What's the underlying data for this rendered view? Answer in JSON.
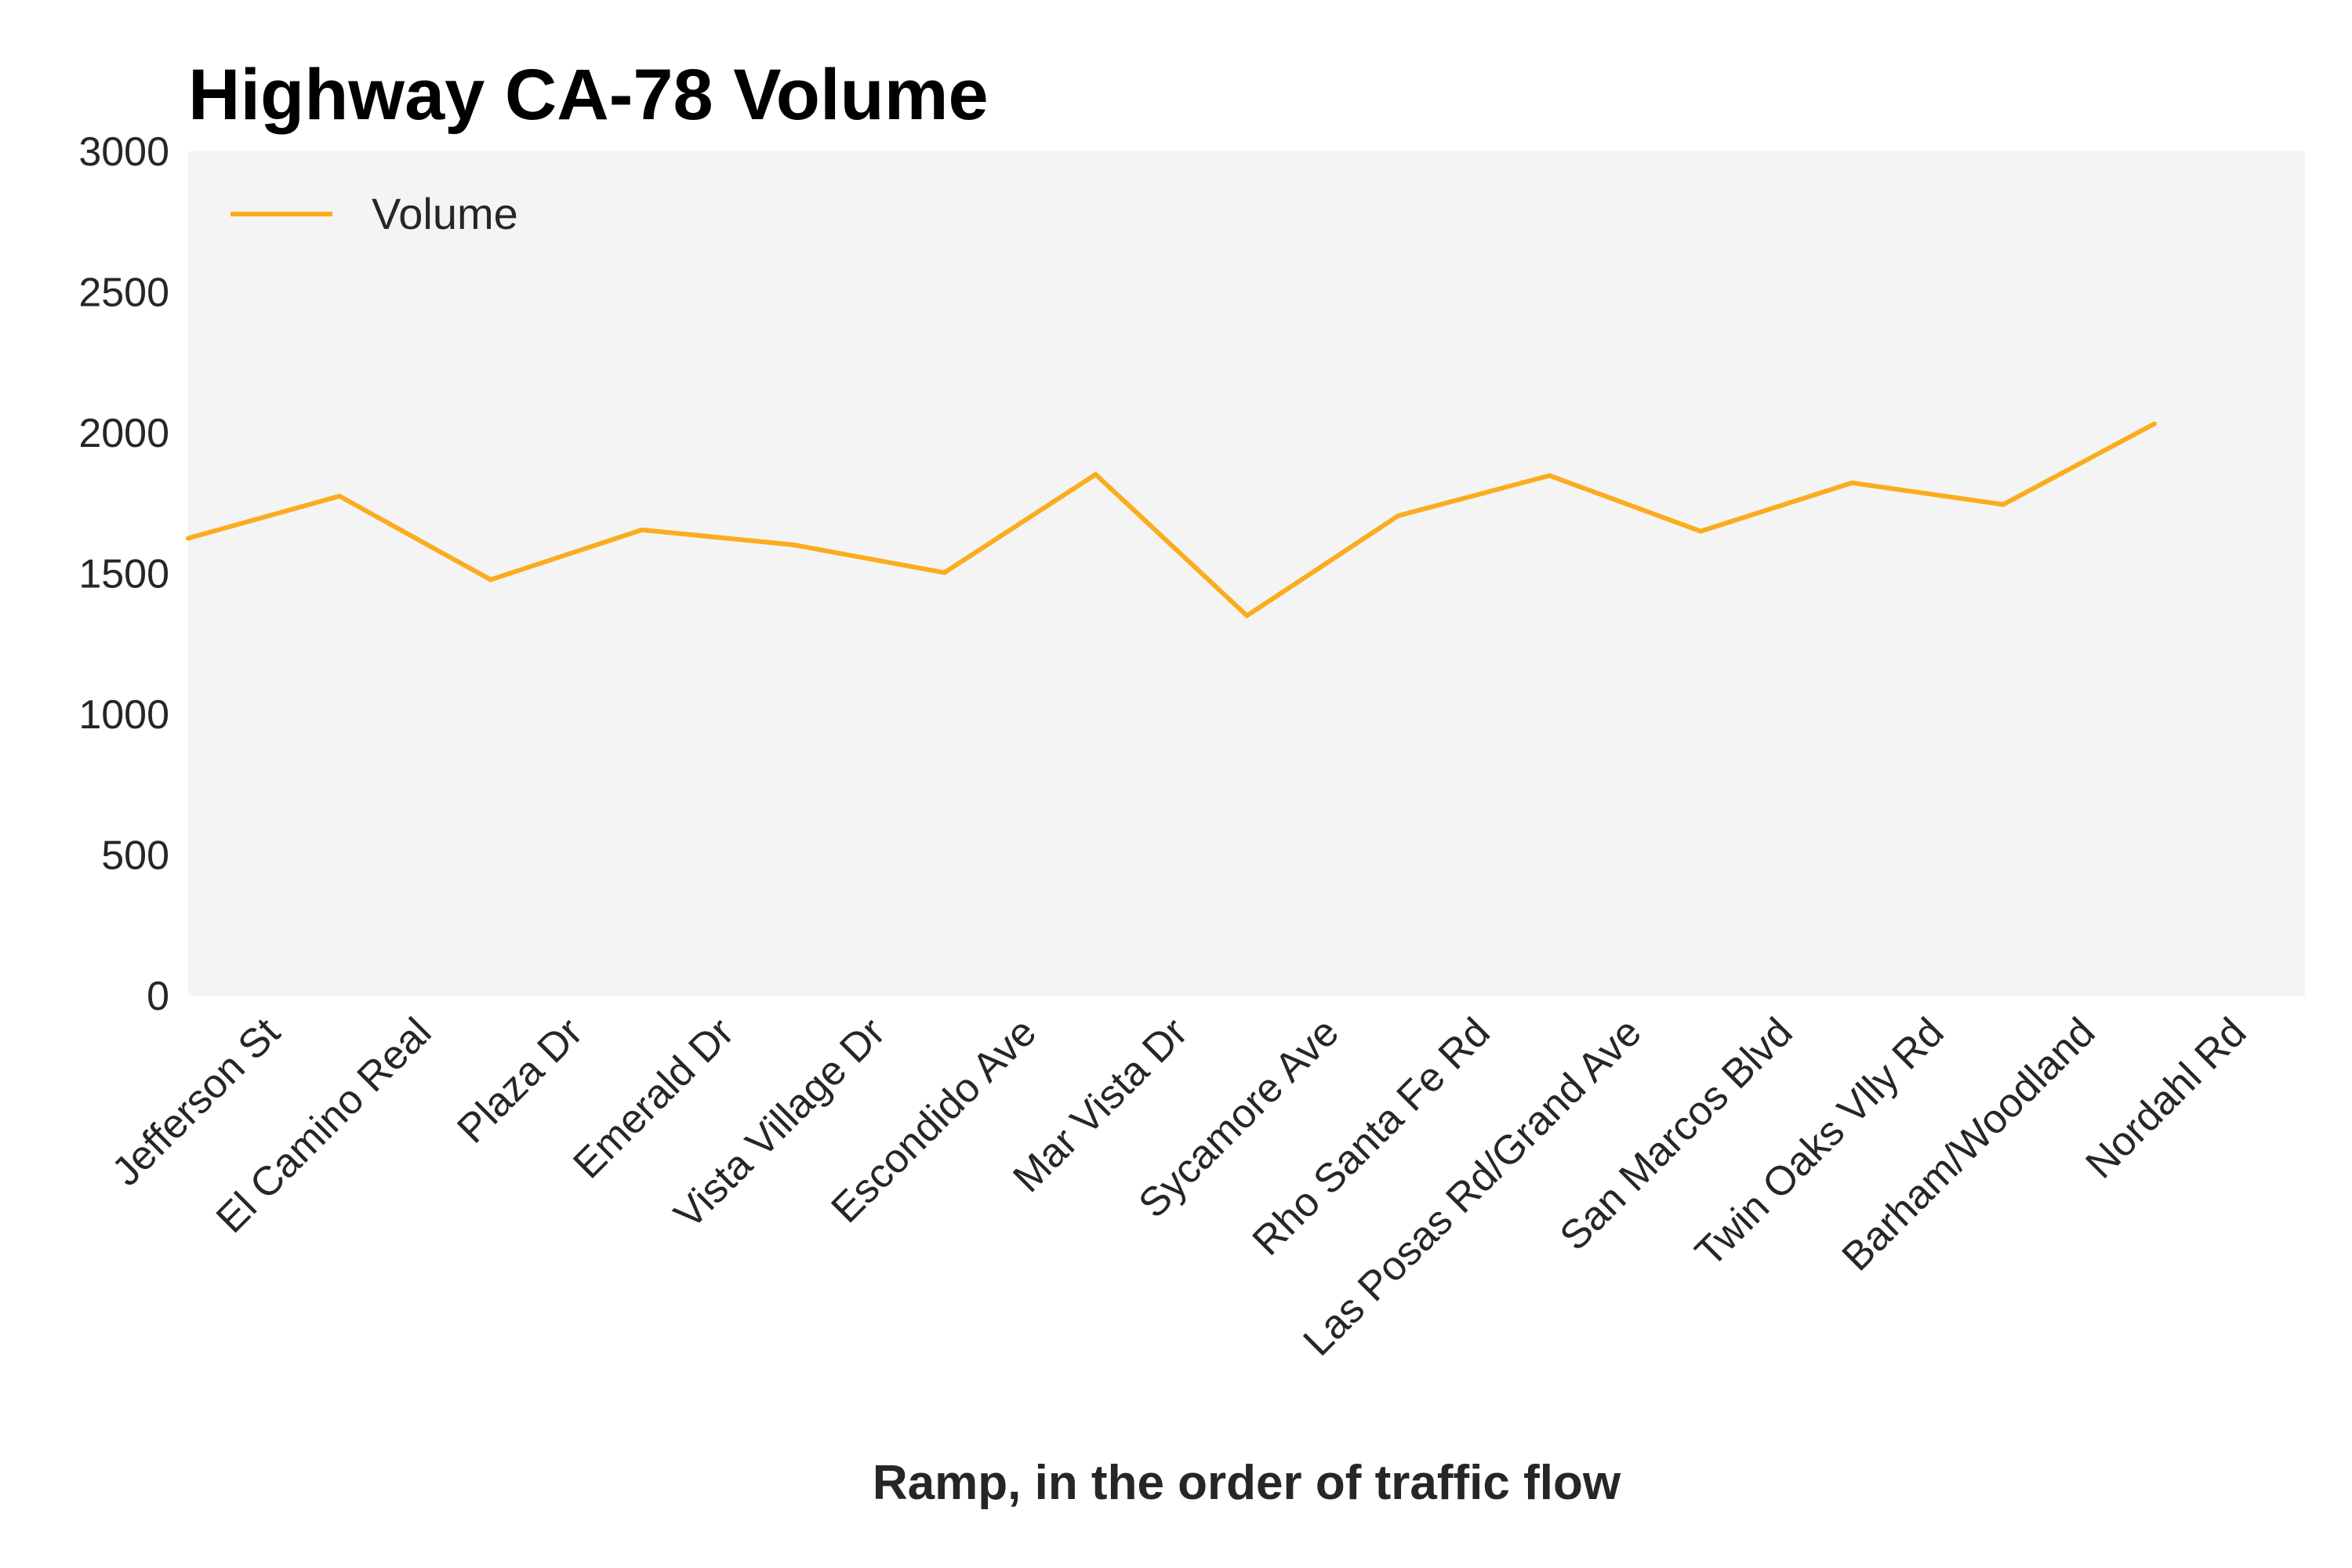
{
  "chart_data": {
    "type": "line",
    "title": "Highway CA-78 Volume",
    "xlabel": "Ramp, in the order of traffic flow",
    "ylabel": "",
    "ylim": [
      0,
      3000
    ],
    "yticks": [
      "0",
      "500",
      "1000",
      "1500",
      "2000",
      "2500",
      "3000"
    ],
    "categories": [
      "Jefferson St",
      "El Camino Real",
      "Plaza Dr",
      "Emerald Dr",
      "Vista Village Dr",
      "Escondido Ave",
      "Mar Vista Dr",
      "Sycamore Ave",
      "Rho Santa Fe Rd",
      "Las Posas Rd/Grand Ave",
      "San Marcos Blvd",
      "Twin Oaks Vlly Rd",
      "Barham/Woodland",
      "Nordahl Rd"
    ],
    "series": [
      {
        "name": "Volume",
        "color": "#fbac1e",
        "values": [
          1625,
          1775,
          1478,
          1655,
          1602,
          1503,
          1852,
          1350,
          1705,
          1848,
          1650,
          1822,
          1745,
          2032
        ]
      }
    ],
    "legend_position": "top-left",
    "grid": false,
    "plot_background": "#f4f4f4"
  }
}
